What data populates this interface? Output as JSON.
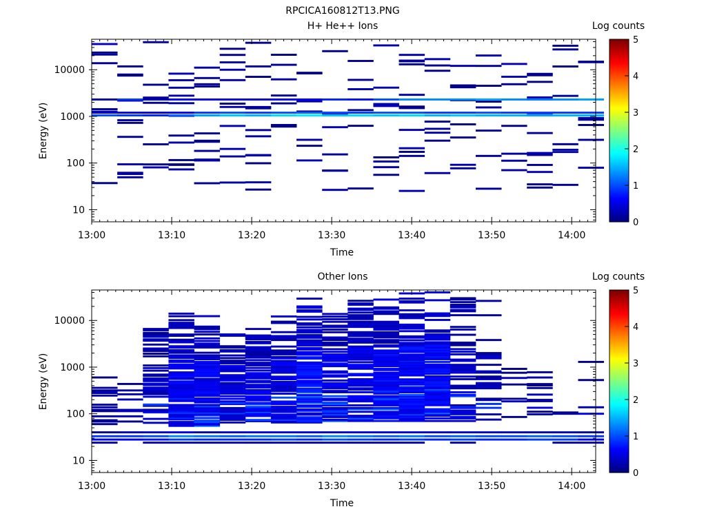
{
  "figure_title": "RPCICA160812T13.PNG",
  "chart_data": [
    {
      "type": "heatmap",
      "title": "H+ He++ Ions",
      "xlabel": "Time",
      "ylabel": "Energy (eV)",
      "x_ticks": [
        "13:00",
        "13:10",
        "13:20",
        "13:30",
        "13:40",
        "13:50",
        "14:00"
      ],
      "x_range_minutes": [
        0,
        63
      ],
      "y_scale": "log",
      "y_ticks": [
        "10",
        "100",
        "1000",
        "10000"
      ],
      "ylim": [
        5.5,
        45000
      ],
      "colorbar": {
        "label": "Log counts",
        "range": [
          0,
          5
        ],
        "ticks": [
          "0",
          "1",
          "2",
          "3",
          "4",
          "5"
        ]
      },
      "time_columns_minutes": [
        0,
        3.2,
        6.4,
        9.6,
        12.8,
        16,
        19.2,
        22.4,
        25.6,
        28.8,
        32,
        35.2,
        38.4,
        41.6,
        44.8,
        48,
        51.2,
        54.4,
        57.6,
        60.8
      ],
      "background_bands": [
        {
          "energy": 1050,
          "log_counts": [
            1.0,
            0.9,
            0.8,
            1.1,
            1.4,
            1.6,
            1.5,
            1.7,
            1.8,
            1.6,
            1.7,
            1.6,
            1.7,
            1.5,
            1.6,
            1.5,
            1.5,
            1.4,
            1.5,
            1.5
          ]
        },
        {
          "energy": 1200,
          "log_counts": [
            0.5,
            0.4,
            0.4,
            0.6,
            0.9,
            1.0,
            0.9,
            1.0,
            1.1,
            1.0,
            0.9,
            1.0,
            1.0,
            0.9,
            0.9,
            1.0,
            0.9,
            0.9,
            0.9,
            0.9
          ]
        },
        {
          "energy": 2300,
          "log_counts": [
            0.2,
            0.9,
            0.2,
            0.6,
            0.5,
            0.5,
            0.4,
            0.6,
            0.6,
            0.8,
            0.7,
            1.0,
            1.3,
            1.3,
            1.3,
            1.4,
            1.3,
            1.2,
            1.3,
            1.4
          ]
        }
      ],
      "seed": 7,
      "sparse_per_column": 9,
      "sparse_log_counts_max": 0.3
    },
    {
      "type": "heatmap",
      "title": "Other Ions",
      "xlabel": "Time",
      "ylabel": "Energy (eV)",
      "x_ticks": [
        "13:00",
        "13:10",
        "13:20",
        "13:30",
        "13:40",
        "13:50",
        "14:00"
      ],
      "x_range_minutes": [
        0,
        63
      ],
      "y_scale": "log",
      "y_ticks": [
        "10",
        "100",
        "1000",
        "10000"
      ],
      "ylim": [
        5.5,
        45000
      ],
      "colorbar": {
        "label": "Log counts",
        "range": [
          0,
          5
        ],
        "ticks": [
          "0",
          "1",
          "2",
          "3",
          "4",
          "5"
        ]
      },
      "time_columns_minutes": [
        0,
        3.2,
        6.4,
        9.6,
        12.8,
        16,
        19.2,
        22.4,
        25.6,
        28.8,
        32,
        35.2,
        38.4,
        41.6,
        44.8,
        48,
        51.2,
        54.4,
        57.6,
        60.8
      ],
      "background_bands": [
        {
          "energy": 40,
          "log_counts": [
            0.1,
            0.3,
            0.4,
            0.6,
            0.2,
            0.4,
            0.5,
            0.5,
            0.5,
            0.4,
            0.5,
            0.5,
            0.5,
            0.4,
            0.4,
            0.4,
            0.3,
            0.3,
            0.3,
            0.2
          ]
        },
        {
          "energy": 33,
          "log_counts": [
            0.9,
            0.9,
            1.0,
            1.3,
            1.2,
            1.1,
            1.2,
            1.2,
            1.1,
            1.3,
            1.2,
            1.1,
            1.2,
            1.0,
            1.1,
            1.0,
            1.0,
            1.1,
            1.0,
            0.9
          ]
        },
        {
          "energy": 28,
          "log_counts": [
            0.6,
            0.6,
            0.7,
            0.9,
            0.8,
            0.8,
            0.8,
            0.9,
            0.8,
            1.0,
            0.9,
            0.8,
            0.9,
            0.8,
            0.9,
            0.8,
            0.8,
            0.9,
            0.9,
            0.6
          ]
        },
        {
          "energy": 24,
          "log_counts": [
            0.2,
            null,
            0.3,
            0.3,
            0.2,
            0.3,
            0.2,
            0.3,
            0.2,
            0.3,
            0.2,
            0.2,
            0.2,
            null,
            0.2,
            null,
            null,
            null,
            0.2,
            0.2
          ]
        }
      ],
      "column_profiles": [
        {
          "emin": 60,
          "emax": 1000,
          "level": 0.15,
          "fill": 0.25
        },
        {
          "emin": 60,
          "emax": 1000,
          "level": 0.2,
          "fill": 0.3
        },
        {
          "emin": 60,
          "emax": 11000,
          "level": 0.35,
          "fill": 0.55
        },
        {
          "emin": 55,
          "emax": 17000,
          "level": 0.55,
          "fill": 0.85
        },
        {
          "emin": 55,
          "emax": 15000,
          "level": 0.55,
          "fill": 0.85
        },
        {
          "emin": 65,
          "emax": 9000,
          "level": 0.45,
          "fill": 0.75
        },
        {
          "emin": 65,
          "emax": 7000,
          "level": 0.5,
          "fill": 0.75
        },
        {
          "emin": 65,
          "emax": 13000,
          "level": 0.5,
          "fill": 0.8
        },
        {
          "emin": 65,
          "emax": 38000,
          "level": 0.65,
          "fill": 0.85
        },
        {
          "emin": 70,
          "emax": 19000,
          "level": 0.5,
          "fill": 0.75
        },
        {
          "emin": 70,
          "emax": 30000,
          "level": 0.5,
          "fill": 0.8
        },
        {
          "emin": 70,
          "emax": 34000,
          "level": 0.6,
          "fill": 0.85
        },
        {
          "emin": 70,
          "emax": 38000,
          "level": 0.6,
          "fill": 0.85
        },
        {
          "emin": 70,
          "emax": 40000,
          "level": 0.6,
          "fill": 0.85
        },
        {
          "emin": 70,
          "emax": 30000,
          "level": 0.35,
          "fill": 0.55
        },
        {
          "emin": 75,
          "emax": 28000,
          "level": 0.25,
          "fill": 0.4
        },
        {
          "emin": 80,
          "emax": 2400,
          "level": 0.15,
          "fill": 0.2
        },
        {
          "emin": 80,
          "emax": 2500,
          "level": 0.15,
          "fill": 0.2
        },
        {
          "emin": 100,
          "emax": 600,
          "level": 0.1,
          "fill": 0.1
        },
        {
          "emin": 100,
          "emax": 2300,
          "level": 0.1,
          "fill": 0.12
        }
      ],
      "seed": 19
    }
  ]
}
